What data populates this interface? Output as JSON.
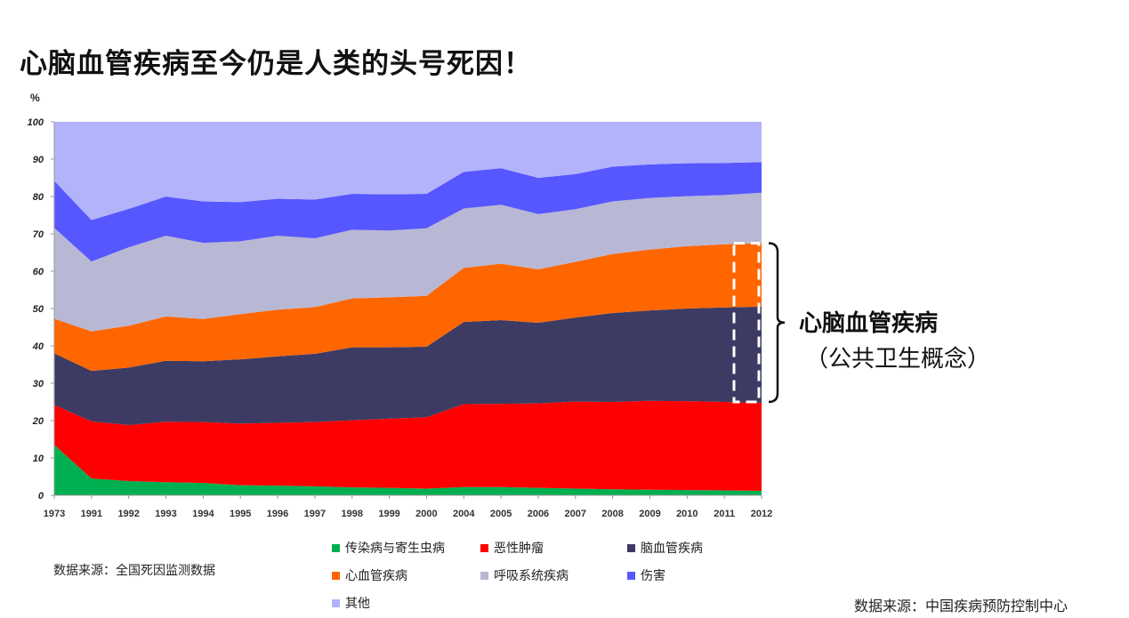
{
  "title": "心脑血管疾病至今仍是人类的头号死因！",
  "chart_data": {
    "type": "area",
    "stacked": true,
    "title": "",
    "xlabel": "",
    "ylabel": "%",
    "ylim": [
      0,
      100
    ],
    "yticks": [
      0,
      10,
      20,
      30,
      40,
      50,
      60,
      70,
      80,
      90,
      100
    ],
    "grid": false,
    "legend_position": "bottom",
    "categories": [
      "1973",
      "1991",
      "1992",
      "1993",
      "1994",
      "1995",
      "1996",
      "1997",
      "1998",
      "1999",
      "2000",
      "2004",
      "2005",
      "2006",
      "2007",
      "2008",
      "2009",
      "2010",
      "2011",
      "2012"
    ],
    "series": [
      {
        "name": "传染病与寄生虫病",
        "color": "#00b050",
        "values": [
          13.5,
          4.5,
          3.8,
          3.5,
          3.3,
          2.7,
          2.6,
          2.4,
          2.1,
          2.0,
          1.8,
          2.2,
          2.2,
          2.0,
          1.8,
          1.6,
          1.5,
          1.4,
          1.3,
          1.2
        ]
      },
      {
        "name": "恶性肿瘤",
        "color": "#ff0000",
        "values": [
          10.7,
          15.3,
          15.0,
          16.2,
          16.3,
          16.5,
          16.8,
          17.2,
          18.0,
          18.5,
          19.1,
          22.2,
          22.3,
          22.6,
          23.3,
          23.4,
          23.8,
          23.8,
          23.7,
          23.6
        ]
      },
      {
        "name": "脑血管疾病",
        "color": "#3d3b64",
        "values": [
          13.8,
          13.5,
          15.4,
          16.3,
          16.3,
          17.2,
          17.8,
          18.3,
          19.5,
          19.1,
          18.9,
          22.0,
          22.4,
          21.6,
          22.5,
          23.8,
          24.2,
          24.8,
          25.3,
          25.7
        ]
      },
      {
        "name": "心血管疾病",
        "color": "#ff6600",
        "values": [
          9.3,
          10.6,
          11.2,
          11.9,
          11.3,
          12.1,
          12.5,
          12.5,
          13.1,
          13.4,
          13.6,
          14.5,
          15.1,
          14.3,
          14.9,
          15.8,
          16.3,
          16.7,
          16.9,
          17.0
        ]
      },
      {
        "name": "呼吸系统疾病",
        "color": "#b8b8d4",
        "values": [
          24.3,
          18.7,
          21.0,
          21.6,
          20.4,
          19.5,
          19.8,
          18.4,
          18.4,
          17.9,
          18.1,
          15.9,
          15.8,
          14.8,
          14.1,
          14.1,
          13.8,
          13.4,
          13.2,
          13.5
        ]
      },
      {
        "name": "伤害",
        "color": "#5757ff",
        "values": [
          12.6,
          11.1,
          10.3,
          10.5,
          11.1,
          10.5,
          9.9,
          10.4,
          9.6,
          9.7,
          9.2,
          9.8,
          9.8,
          9.7,
          9.4,
          9.3,
          9.0,
          8.8,
          8.6,
          8.2
        ]
      },
      {
        "name": "其他",
        "color": "#b3b3fb",
        "values": [
          15.8,
          26.3,
          23.3,
          20.0,
          21.3,
          21.5,
          20.6,
          20.8,
          19.3,
          19.4,
          19.3,
          13.4,
          12.4,
          15.0,
          14.0,
          12.0,
          11.4,
          11.1,
          11.0,
          10.8
        ]
      }
    ],
    "annotation": {
      "title": "心脑血管疾病",
      "subtitle": "（公共卫生概念）",
      "year": "2012",
      "range": [
        25,
        67.5
      ]
    }
  },
  "source_left": "数据来源：全国死因监测数据",
  "source_right": "数据来源：中国疾病预防控制中心"
}
